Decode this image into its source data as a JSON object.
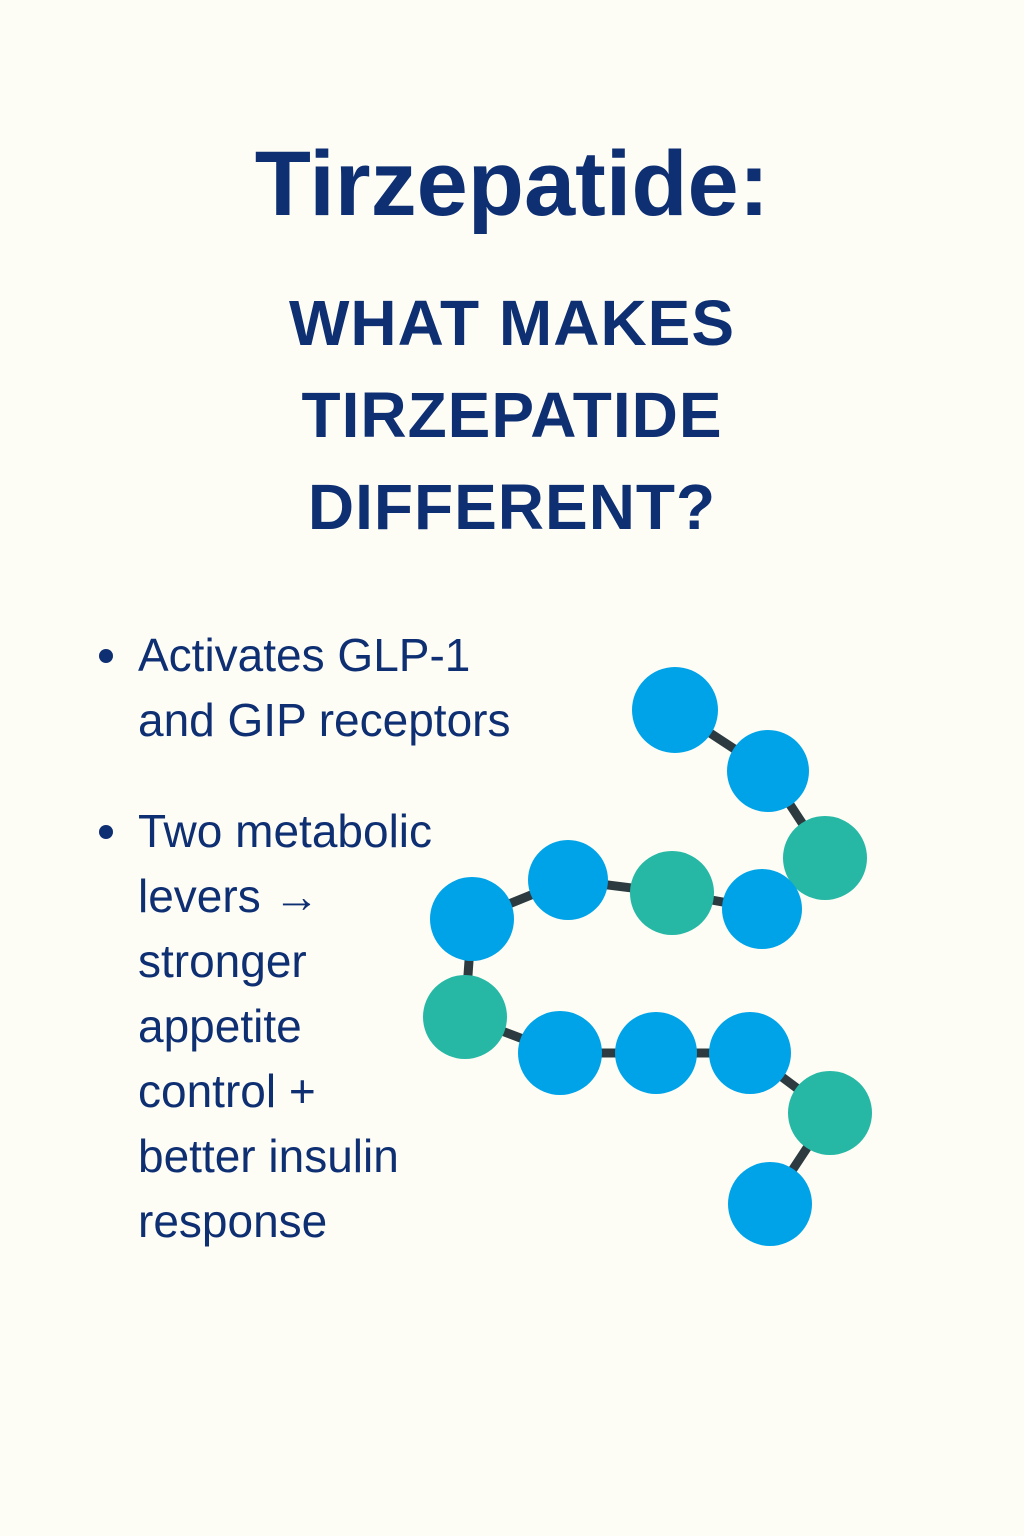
{
  "header": {
    "title": "Tirzepatide:",
    "subtitle_lines": [
      "WHAT MAKES",
      "TIRZEPATIDE",
      "DIFFERENT?"
    ]
  },
  "bullets": [
    {
      "lines": [
        "Activates GLP-1",
        "and GIP receptors"
      ]
    },
    {
      "lines": [
        "Two metabolic",
        "levers →",
        "stronger",
        "appetite",
        "control +",
        "better insulin",
        "response"
      ]
    }
  ]
}
